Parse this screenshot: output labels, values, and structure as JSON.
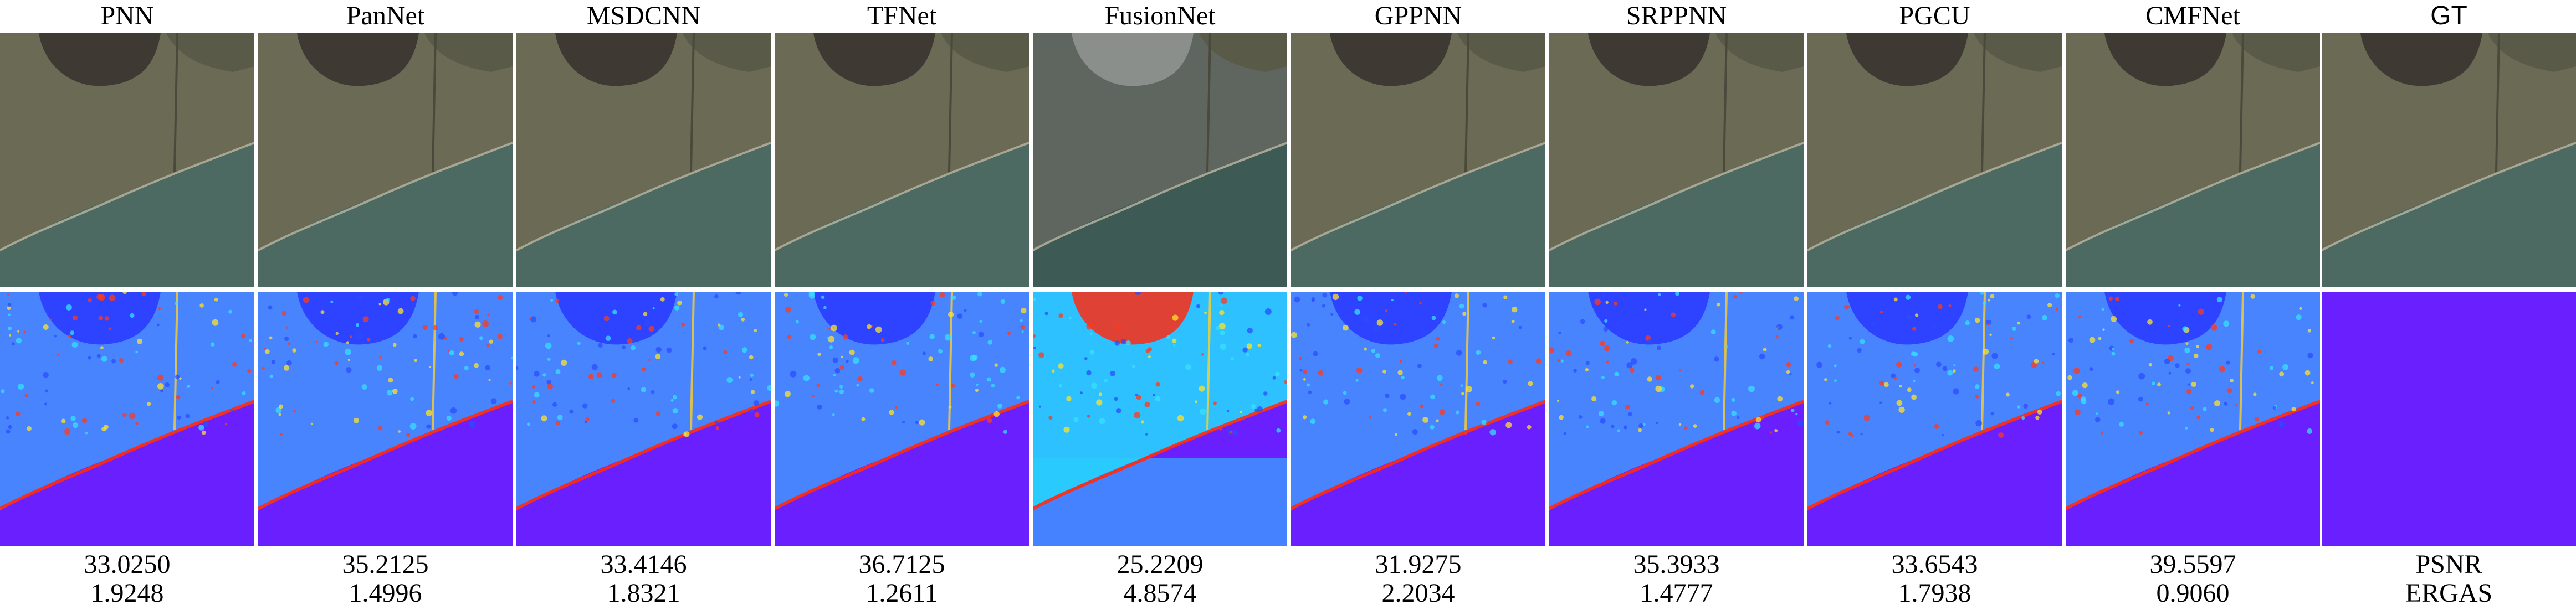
{
  "columns": [
    {
      "title": "PNN",
      "psnr": "33.0250",
      "ergas": "1.9248",
      "style": "normal"
    },
    {
      "title": "PanNet",
      "psnr": "35.2125",
      "ergas": "1.4996",
      "style": "normal"
    },
    {
      "title": "MSDCNN",
      "psnr": "33.4146",
      "ergas": "1.8321",
      "style": "normal"
    },
    {
      "title": "TFNet",
      "psnr": "36.7125",
      "ergas": "1.2611",
      "style": "normal"
    },
    {
      "title": "FusionNet",
      "psnr": "25.2209",
      "ergas": "4.8574",
      "style": "bad"
    },
    {
      "title": "GPPNN",
      "psnr": "31.9275",
      "ergas": "2.2034",
      "style": "normal"
    },
    {
      "title": "SRPPNN",
      "psnr": "35.3933",
      "ergas": "1.4777",
      "style": "normal"
    },
    {
      "title": "PGCU",
      "psnr": "33.6543",
      "ergas": "1.7938",
      "style": "normal"
    },
    {
      "title": "CMFNet",
      "psnr": "39.5597",
      "ergas": "0.9060",
      "style": "normal"
    },
    {
      "title": "GT",
      "psnr": "PSNR",
      "ergas": "ERGAS",
      "style": "gt"
    }
  ],
  "colors": {
    "water": "#4c6a62",
    "land": "#6b6a55",
    "dark_pond": "#3e3a33",
    "error_base": "#6a1fff",
    "error_low": "#2a3cff",
    "error_mid": "#27d3ff",
    "error_high": "#ff2a10"
  }
}
